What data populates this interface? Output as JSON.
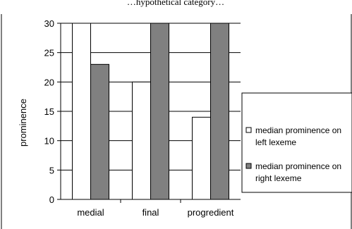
{
  "chart_data": {
    "type": "bar",
    "title": "…hypothetical category…",
    "categories": [
      "medial",
      "final",
      "progredient"
    ],
    "series": [
      {
        "name": "median prominence on left lexeme",
        "values": [
          30,
          20,
          14
        ],
        "color": "#ffffff"
      },
      {
        "name": "median prominence on right lexeme",
        "values": [
          23,
          30,
          30
        ],
        "color": "#808080"
      }
    ],
    "xlabel": "",
    "ylabel": "prominence",
    "ylim": [
      0,
      30
    ],
    "yticks": [
      0,
      5,
      10,
      15,
      20,
      25,
      30
    ],
    "grid": true,
    "legend_placement": "right"
  }
}
